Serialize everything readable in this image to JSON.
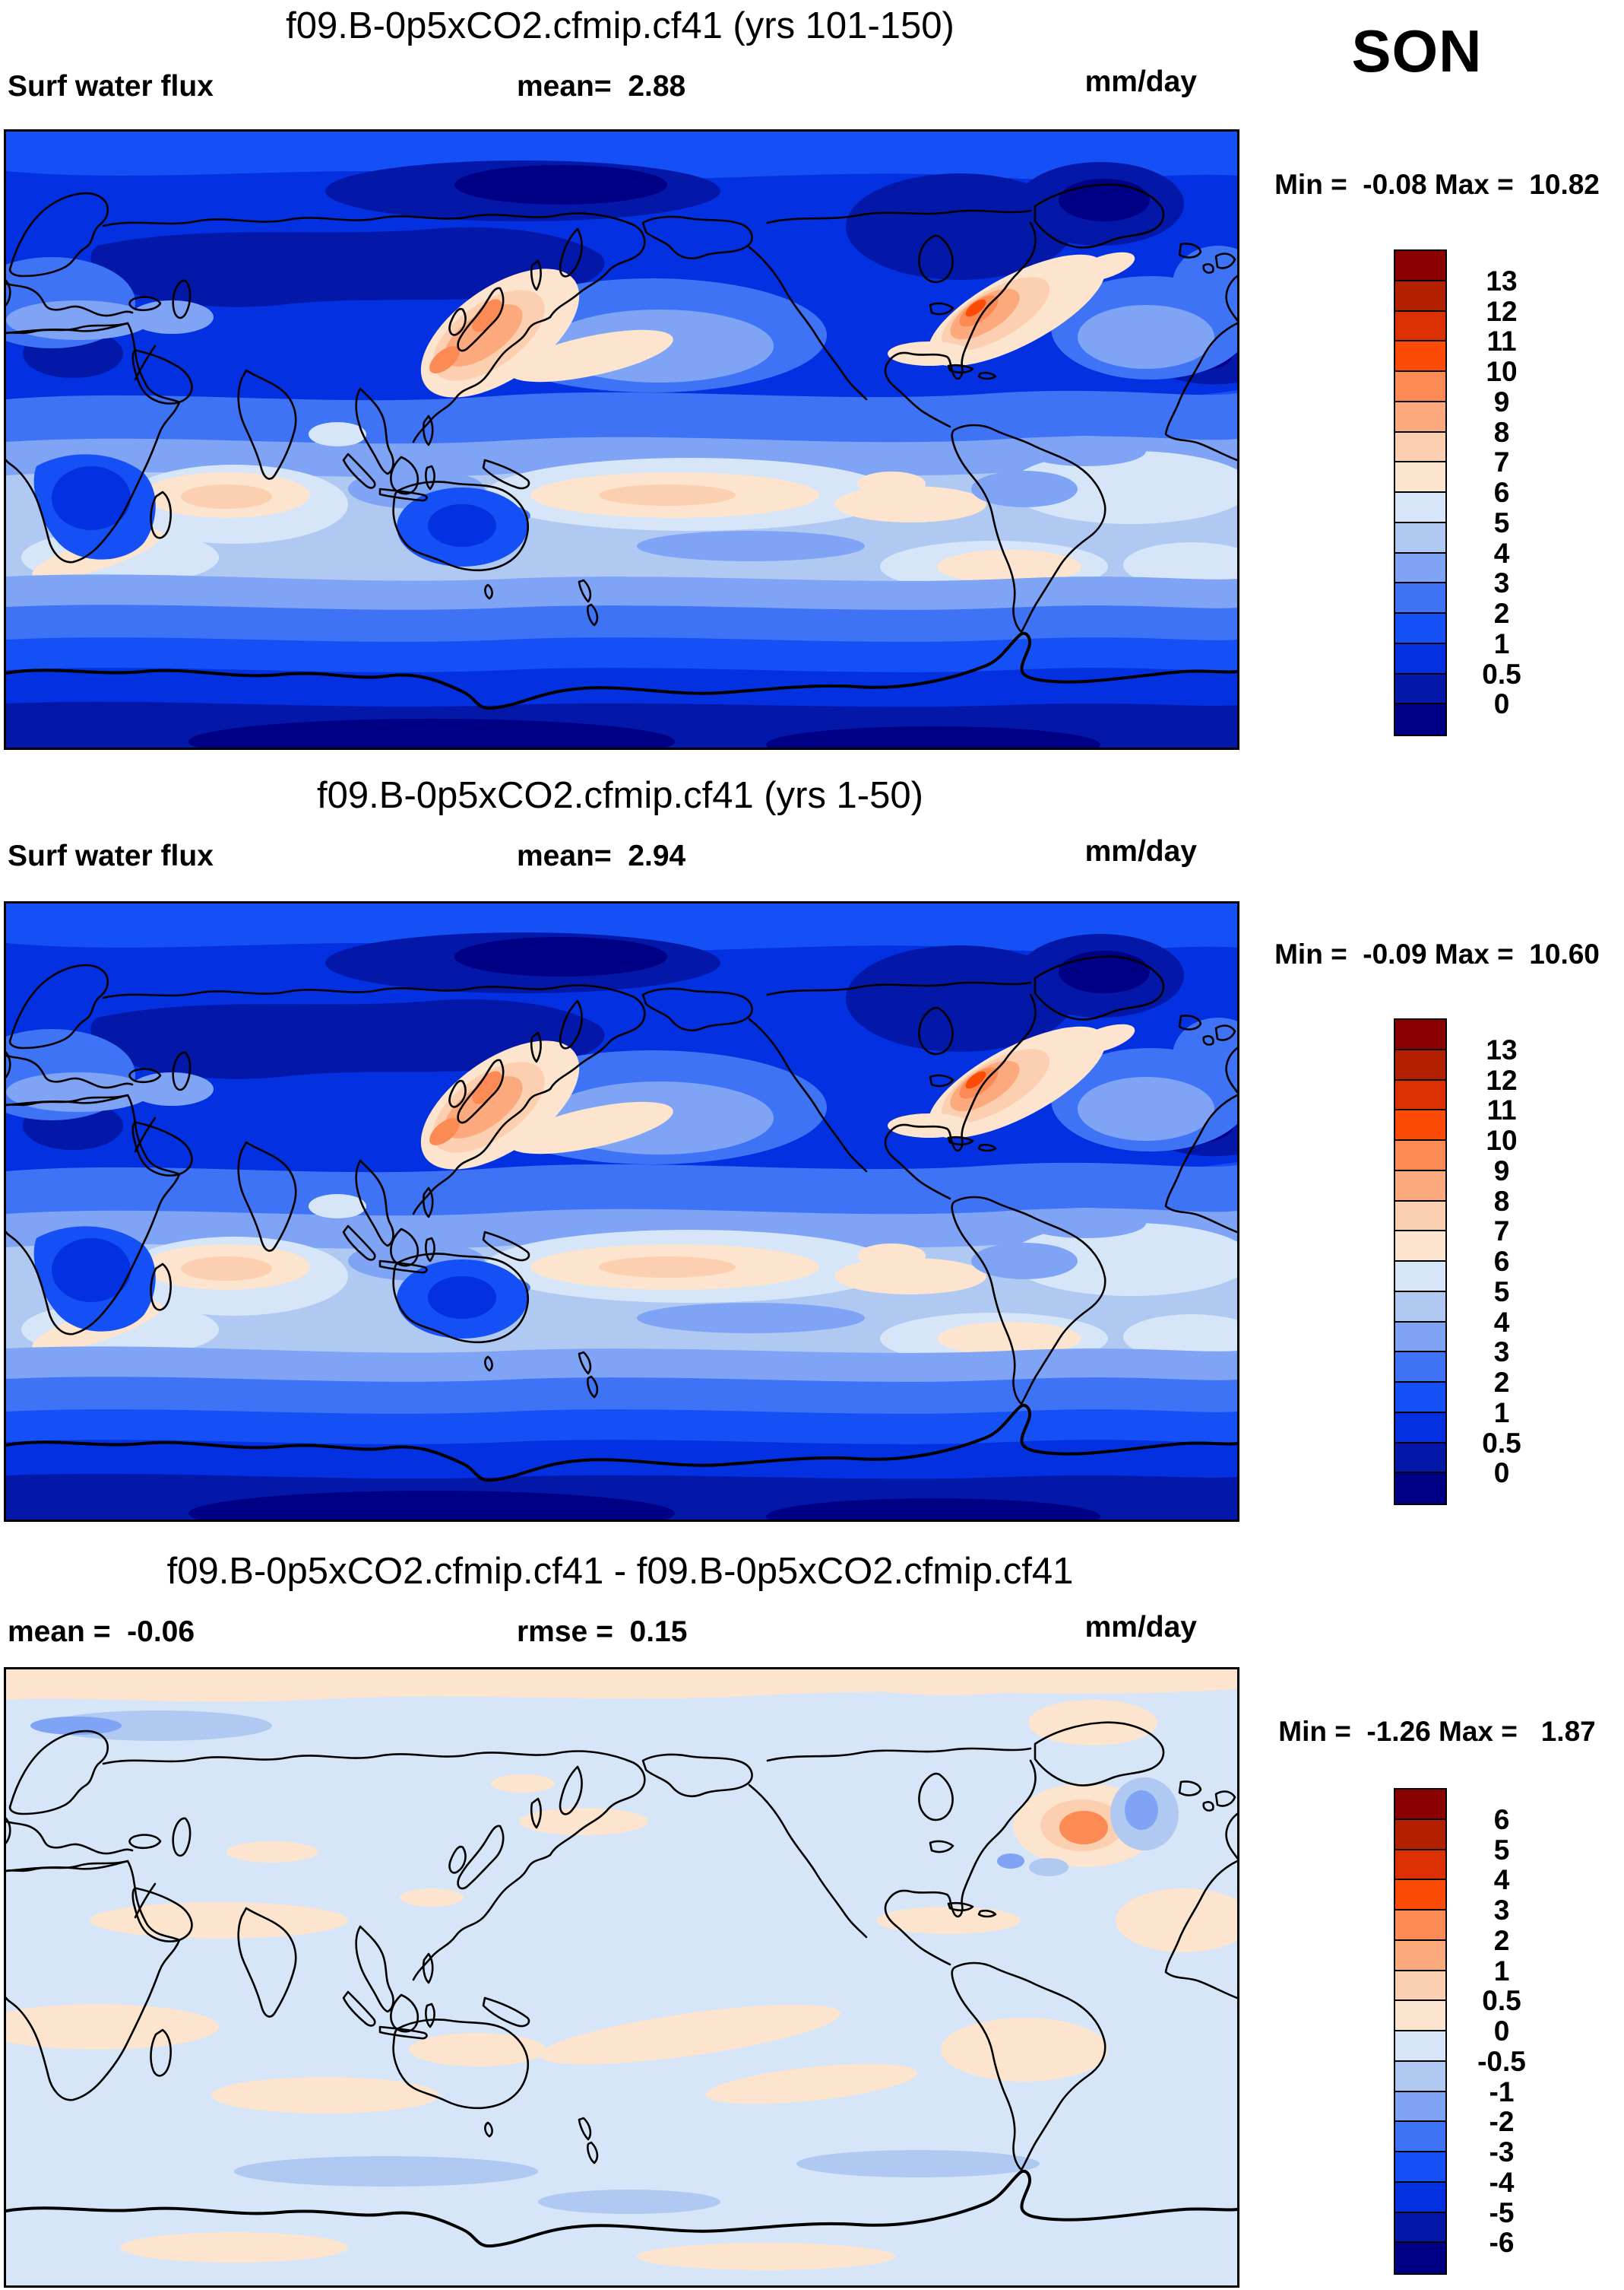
{
  "season_label": "SON",
  "palette": [
    "#8B0000",
    "#B22000",
    "#DC2F02",
    "#FB4B07",
    "#FB8A55",
    "#FCA97D",
    "#FCCFB0",
    "#FCE4CE",
    "#D6E5F8",
    "#B0C9F2",
    "#7FA4F5",
    "#3E73F5",
    "#1450F5",
    "#0330E0",
    "#0318A8",
    "#000087"
  ],
  "panels": [
    {
      "title": "f09.B-0p5xCO2.cfmip.cf41 (yrs 101-150)",
      "var_label": "Surf water flux",
      "stat_label": "mean=  2.88",
      "units": "mm/day",
      "minmax": "Min =  -0.08 Max =  10.82",
      "ticks": [
        "13",
        "12",
        "11",
        "10",
        "9",
        "8",
        "7",
        "6",
        "5",
        "4",
        "3",
        "2",
        "1",
        "0.5",
        "0"
      ]
    },
    {
      "title": "f09.B-0p5xCO2.cfmip.cf41 (yrs 1-50)",
      "var_label": "Surf water flux",
      "stat_label": "mean=  2.94",
      "units": "mm/day",
      "minmax": "Min =  -0.09 Max =  10.60",
      "ticks": [
        "13",
        "12",
        "11",
        "10",
        "9",
        "8",
        "7",
        "6",
        "5",
        "4",
        "3",
        "2",
        "1",
        "0.5",
        "0"
      ]
    },
    {
      "title": "f09.B-0p5xCO2.cfmip.cf41 - f09.B-0p5xCO2.cfmip.cf41",
      "var_label": "mean =  -0.06",
      "stat_label": "rmse =  0.15",
      "units": "mm/day",
      "minmax": "Min =  -1.26 Max =   1.87",
      "ticks": [
        "6",
        "5",
        "4",
        "3",
        "2",
        "1",
        "0.5",
        "0",
        "-0.5",
        "-1",
        "-2",
        "-3",
        "-4",
        "-5",
        "-6"
      ]
    }
  ],
  "chart_data": [
    {
      "type": "heatmap",
      "subtype": "global-contour-map",
      "title": "f09.B-0p5xCO2.cfmip.cf41 (yrs 101-150)",
      "variable": "Surf water flux",
      "season": "SON",
      "units": "mm/day",
      "mean": 2.88,
      "min": -0.08,
      "max": 10.82,
      "levels": [
        0,
        0.5,
        1,
        2,
        3,
        4,
        5,
        6,
        7,
        8,
        9,
        10,
        11,
        12,
        13
      ],
      "legend_position": "right",
      "notable_features": "high flux (orange) off Japan/Kuroshio and US east coast/Gulf Stream; low flux (dark blue) at poles and over northern continents; pale subtropical ocean bands"
    },
    {
      "type": "heatmap",
      "subtype": "global-contour-map",
      "title": "f09.B-0p5xCO2.cfmip.cf41 (yrs 1-50)",
      "variable": "Surf water flux",
      "season": "SON",
      "units": "mm/day",
      "mean": 2.94,
      "min": -0.09,
      "max": 10.6,
      "levels": [
        0,
        0.5,
        1,
        2,
        3,
        4,
        5,
        6,
        7,
        8,
        9,
        10,
        11,
        12,
        13
      ],
      "legend_position": "right",
      "notable_features": "same pattern as panel 1: Kuroshio and Gulf Stream maxima, polar minima"
    },
    {
      "type": "heatmap",
      "subtype": "global-contour-difference-map",
      "title": "f09.B-0p5xCO2.cfmip.cf41 - f09.B-0p5xCO2.cfmip.cf41",
      "season": "SON",
      "units": "mm/day",
      "mean": -0.06,
      "rmse": 0.15,
      "min": -1.26,
      "max": 1.87,
      "levels": [
        -6,
        -5,
        -4,
        -3,
        -2,
        -1,
        -0.5,
        0,
        0.5,
        1,
        2,
        3,
        4,
        5,
        6
      ],
      "legend_position": "right",
      "notable_features": "near-zero differences everywhere (pale blue/pale peach); small positive anomaly (salmon) in NW Atlantic with adjacent negative (blue) patch"
    }
  ]
}
